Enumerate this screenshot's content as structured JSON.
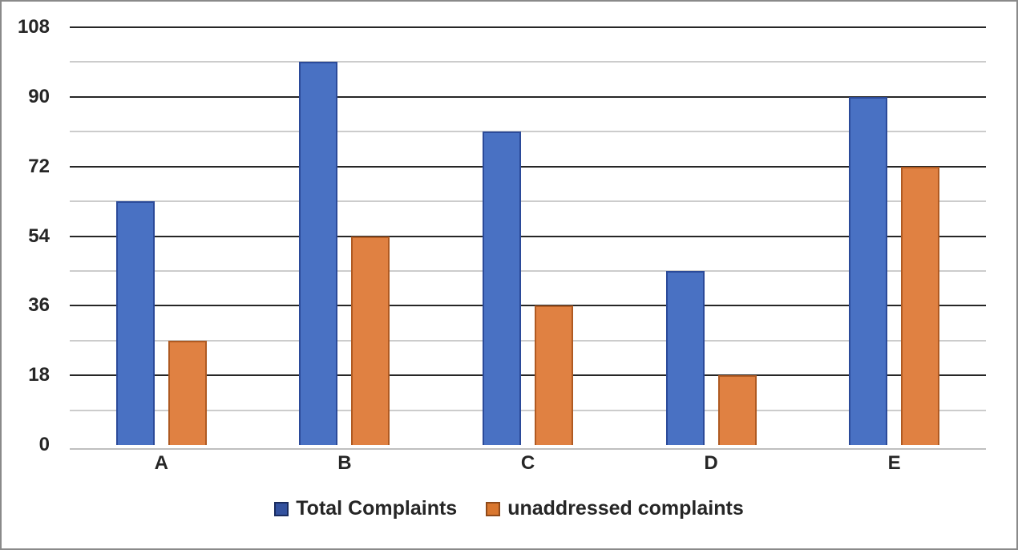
{
  "chart_data": {
    "type": "bar",
    "title": "",
    "categories": [
      "A",
      "B",
      "C",
      "D",
      "E"
    ],
    "series": [
      {
        "name": "Total Complaints",
        "values": [
          63,
          99,
          81,
          45,
          90
        ],
        "fill": "#4971C3",
        "border": "#2B4A99",
        "legend_fill": "#33519E",
        "legend_border": "#1A2C5F"
      },
      {
        "name": "unaddressed complaints",
        "values": [
          27,
          54,
          36,
          18,
          72
        ],
        "fill": "#E08142",
        "border": "#AF5A22",
        "legend_fill": "#D9772F",
        "legend_border": "#8F4A1A"
      }
    ],
    "xlabel": "",
    "ylabel": "",
    "ylim": [
      0,
      108
    ],
    "y_major_step": 18,
    "y_minor_step": 9,
    "y_tick_labels": [
      "0",
      "18",
      "36",
      "54",
      "72",
      "90",
      "108"
    ],
    "grid": "horizontal major (dark) and minor (light) gridlines",
    "legend_position": "bottom"
  },
  "styles": {
    "major_gridline_color": "#262626",
    "minor_gridline_color": "#CCCCCC",
    "axis_line_color": "#BFBFBF",
    "text_color": "#262626",
    "frame_border_color": "#8A8A8A",
    "background": "#FFFFFF"
  }
}
